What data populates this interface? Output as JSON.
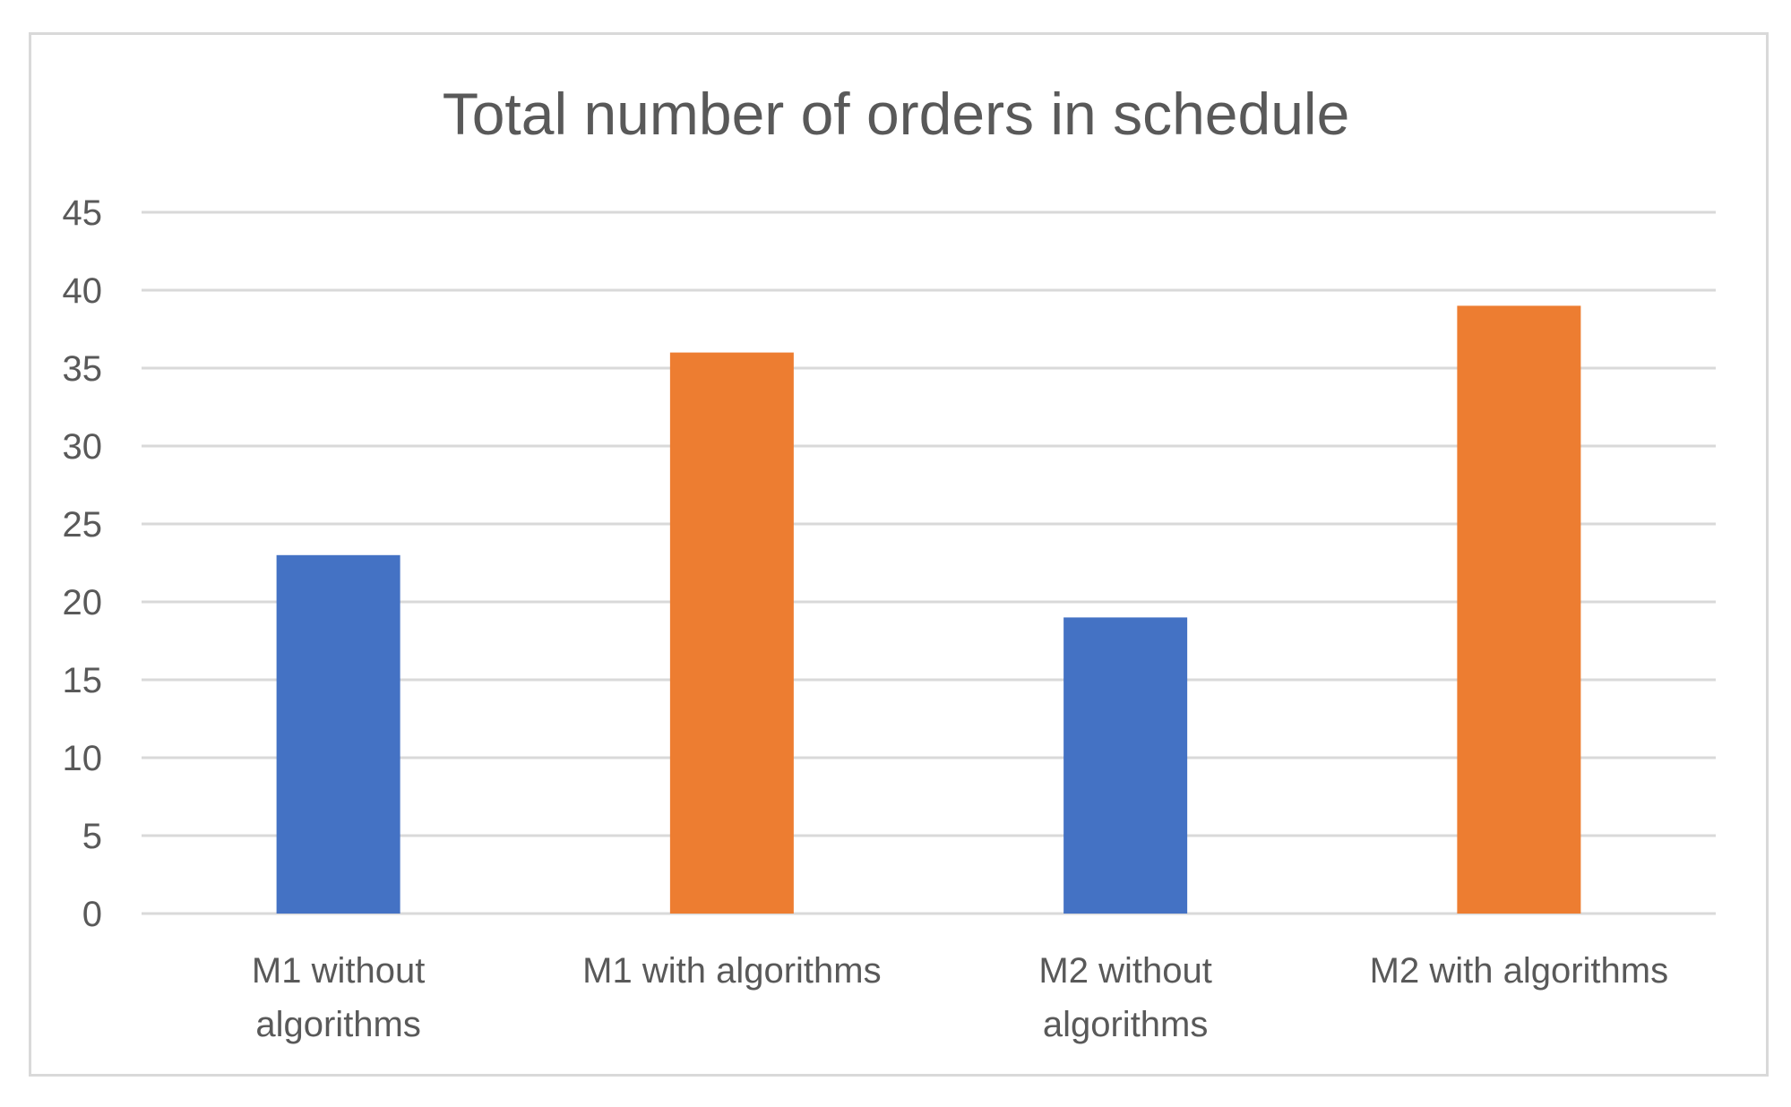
{
  "chart_data": {
    "type": "bar",
    "title": "Total number of orders in schedule",
    "categories": [
      [
        "M1 without",
        "algorithms"
      ],
      [
        "M1 with algorithms"
      ],
      [
        "M2 without",
        "algorithms"
      ],
      [
        "M2 with algorithms"
      ]
    ],
    "values": [
      23,
      36,
      19,
      39
    ],
    "bar_colors": [
      "#4472c4",
      "#ed7d31",
      "#4472c4",
      "#ed7d31"
    ],
    "ylim": [
      0,
      45
    ],
    "yticks": [
      0,
      5,
      10,
      15,
      20,
      25,
      30,
      35,
      40,
      45
    ],
    "xlabel": "",
    "ylabel": "",
    "grid": true,
    "gridline_color": "#d9d9d9",
    "text_color": "#595959"
  }
}
